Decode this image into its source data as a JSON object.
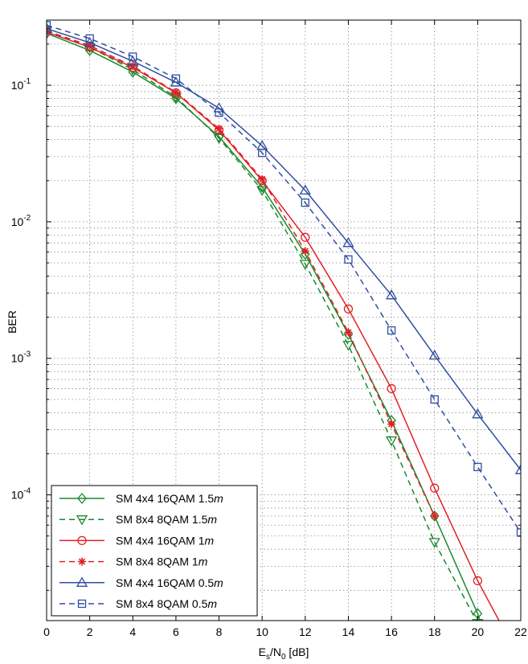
{
  "chart_data": {
    "type": "line",
    "xlabel": {
      "base": "E",
      "sub1": "s",
      "mid": "/N",
      "sub2": "0",
      "tail": " [dB]"
    },
    "ylabel": "BER",
    "xlim": [
      0,
      22
    ],
    "ylim": [
      1.2e-05,
      0.3
    ],
    "y_scale": "log",
    "grid": true,
    "legend_position": "bottom-left",
    "x_ticks": [
      0,
      2,
      4,
      6,
      8,
      10,
      12,
      14,
      16,
      18,
      20,
      22
    ],
    "y_ticks": [
      {
        "value": 0.1,
        "mantissa": "10",
        "exponent": "-1"
      },
      {
        "value": 0.01,
        "mantissa": "10",
        "exponent": "-2"
      },
      {
        "value": 0.001,
        "mantissa": "10",
        "exponent": "-3"
      },
      {
        "value": 0.0001,
        "mantissa": "10",
        "exponent": "-4"
      }
    ],
    "series": [
      {
        "name": "SM 4x4 16QAM 1.5",
        "name_suffix": "m",
        "color": "#1a8a2e",
        "dash": "solid",
        "marker": "diamond",
        "x": [
          0,
          2,
          4,
          6,
          8,
          10,
          12,
          14,
          16,
          18,
          20,
          21
        ],
        "y": [
          0.24,
          0.18,
          0.125,
          0.08,
          0.042,
          0.018,
          0.0058,
          0.0015,
          0.00035,
          7e-05,
          1.35e-05,
          4.5e-06
        ]
      },
      {
        "name": "SM 8x4 8QAM 1.5",
        "name_suffix": "m",
        "color": "#1a8a2e",
        "dash": "dashed",
        "marker": "triangle-down",
        "x": [
          0,
          2,
          4,
          6,
          8,
          10,
          12,
          14,
          16,
          18,
          20
        ],
        "y": [
          0.25,
          0.19,
          0.13,
          0.082,
          0.041,
          0.017,
          0.0049,
          0.00125,
          0.00025,
          4.5e-05,
          1.15e-05
        ]
      },
      {
        "name": "SM 4x4 16QAM 1",
        "name_suffix": "m",
        "color": "#e32026",
        "dash": "solid",
        "marker": "circle",
        "x": [
          0,
          2,
          4,
          6,
          8,
          10,
          12,
          14,
          16,
          18,
          20,
          21.5
        ],
        "y": [
          0.245,
          0.19,
          0.135,
          0.088,
          0.047,
          0.02,
          0.0077,
          0.0023,
          0.0006,
          0.000112,
          2.35e-05,
          8.5e-06
        ]
      },
      {
        "name": "SM 8x4 8QAM 1",
        "name_suffix": "m",
        "color": "#e32026",
        "dash": "dashed",
        "marker": "star",
        "x": [
          0,
          2,
          4,
          6,
          8,
          10,
          12,
          14,
          16,
          18
        ],
        "y": [
          0.25,
          0.195,
          0.138,
          0.089,
          0.048,
          0.0205,
          0.0061,
          0.00155,
          0.00033,
          7e-05
        ]
      },
      {
        "name": "SM 4x4 16QAM 0.5",
        "name_suffix": "m",
        "color": "#2f4ea0",
        "dash": "solid",
        "marker": "triangle-up",
        "x": [
          0,
          2,
          4,
          6,
          8,
          10,
          12,
          14,
          16,
          18,
          20,
          22
        ],
        "y": [
          0.26,
          0.205,
          0.15,
          0.105,
          0.068,
          0.036,
          0.017,
          0.007,
          0.0029,
          0.00105,
          0.00039,
          0.000152
        ]
      },
      {
        "name": "SM 8x4 8QAM 0.5",
        "name_suffix": "m",
        "color": "#2f4ea0",
        "dash": "dashed",
        "marker": "square",
        "x": [
          0,
          2,
          4,
          6,
          8,
          10,
          12,
          14,
          16,
          18,
          20,
          22
        ],
        "y": [
          0.275,
          0.22,
          0.162,
          0.112,
          0.063,
          0.032,
          0.0138,
          0.0053,
          0.0016,
          0.0005,
          0.00016,
          5.3e-05
        ]
      }
    ]
  }
}
